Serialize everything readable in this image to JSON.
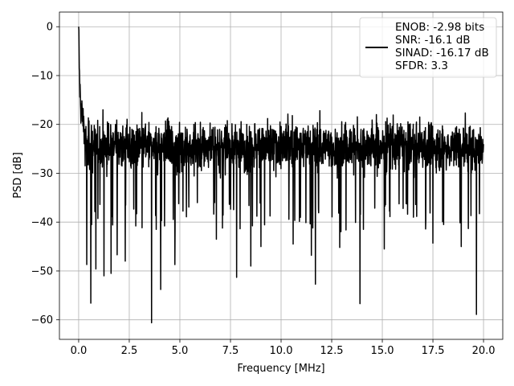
{
  "chart_data": {
    "type": "line",
    "title": "",
    "xlabel": "Frequency [MHz]",
    "ylabel": "PSD [dB]",
    "xlim": [
      -0.95,
      20.95
    ],
    "ylim": [
      -64,
      3
    ],
    "xticks": [
      0.0,
      2.5,
      5.0,
      7.5,
      10.0,
      12.5,
      15.0,
      17.5,
      20.0
    ],
    "xtick_labels": [
      "0.0",
      "2.5",
      "5.0",
      "7.5",
      "10.0",
      "12.5",
      "15.0",
      "17.5",
      "20.0"
    ],
    "yticks": [
      0,
      -10,
      -20,
      -30,
      -40,
      -50,
      -60
    ],
    "ytick_labels": [
      "0",
      "−10",
      "−20",
      "−30",
      "−40",
      "−50",
      "−60"
    ],
    "grid": true,
    "legend_position": "top-right",
    "legend_entries": [
      "ENOB: -2.98 bits",
      "SNR: -16.1 dB",
      "SINAD: -16.17 dB",
      "SFDR: 3.3"
    ],
    "series": [
      {
        "color": "#000000",
        "x_range": [
          0.0,
          20.0
        ],
        "num_points": 2000,
        "noise_floor_mean": -24.5,
        "noise_upper_envelope": -14.0,
        "noise_lower_typical": -36.0,
        "peak": {
          "x": 0.0,
          "y": 0.0
        },
        "rolloff": [
          {
            "x": 0.0,
            "y": 0.0
          },
          {
            "x": 0.02,
            "y": -6.0
          },
          {
            "x": 0.05,
            "y": -12.0
          },
          {
            "x": 0.1,
            "y": -16.0
          },
          {
            "x": 0.2,
            "y": -19.0
          },
          {
            "x": 0.3,
            "y": -21.0
          }
        ],
        "notable_dips": [
          {
            "x": 0.4,
            "y": -48.7
          },
          {
            "x": 0.6,
            "y": -56.6
          },
          {
            "x": 0.85,
            "y": -49.6
          },
          {
            "x": 1.25,
            "y": -51.0
          },
          {
            "x": 1.6,
            "y": -50.5
          },
          {
            "x": 1.9,
            "y": -46.7
          },
          {
            "x": 2.3,
            "y": -48.0
          },
          {
            "x": 3.6,
            "y": -60.6
          },
          {
            "x": 4.05,
            "y": -53.8
          },
          {
            "x": 4.75,
            "y": -48.7
          },
          {
            "x": 6.8,
            "y": -43.5
          },
          {
            "x": 7.8,
            "y": -51.3
          },
          {
            "x": 8.5,
            "y": -49.0
          },
          {
            "x": 9.0,
            "y": -45.0
          },
          {
            "x": 10.6,
            "y": -44.5
          },
          {
            "x": 11.5,
            "y": -46.8
          },
          {
            "x": 11.7,
            "y": -52.7
          },
          {
            "x": 12.9,
            "y": -45.2
          },
          {
            "x": 13.9,
            "y": -56.7
          },
          {
            "x": 15.1,
            "y": -45.5
          },
          {
            "x": 17.5,
            "y": -44.3
          },
          {
            "x": 18.9,
            "y": -45.0
          },
          {
            "x": 19.65,
            "y": -58.9
          }
        ]
      }
    ]
  }
}
